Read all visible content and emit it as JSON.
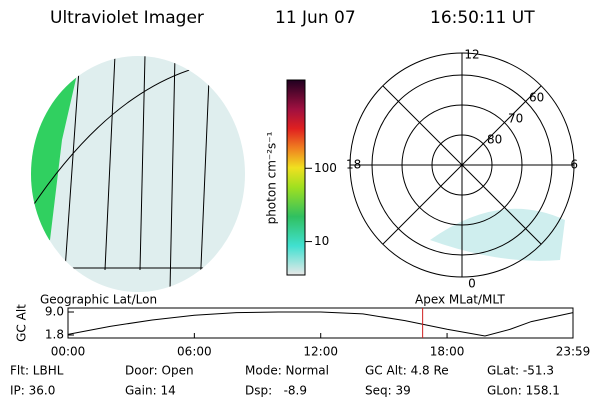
{
  "header": {
    "instrument": "Ultraviolet Imager",
    "date": "11 Jun 07",
    "time": "16:50:11 UT"
  },
  "colorbar": {
    "label": "photon cm⁻²s⁻¹",
    "scale": "log",
    "lim": [
      3.5,
      1600
    ],
    "ticks": [
      10,
      100
    ]
  },
  "polar": {
    "mlt_labels": [
      "12",
      "18",
      "6",
      "0"
    ],
    "lat_labels": [
      80,
      70,
      60
    ]
  },
  "captions": {
    "left": "Geographic Lat/Lon",
    "right": "Apex MLat/MLT"
  },
  "altitude": {
    "ylabel": "GC Alt",
    "ylim": [
      1.8,
      9.0
    ],
    "yticks": [
      {
        "value": 9.0,
        "label": "9.0"
      },
      {
        "value": 1.8,
        "label": "1.8"
      }
    ],
    "xlim": [
      0,
      23.98
    ],
    "xticks": [
      {
        "value": 0,
        "label": "00:00"
      },
      {
        "value": 6,
        "label": "06:00"
      },
      {
        "value": 12,
        "label": "12:00"
      },
      {
        "value": 18,
        "label": "18:00"
      },
      {
        "value": 23.98,
        "label": "23:59"
      }
    ],
    "x": [
      0,
      2,
      4,
      6,
      8,
      10,
      12,
      14,
      16,
      18,
      19.8,
      21,
      22,
      23.98
    ],
    "y": [
      2.0,
      4.5,
      6.5,
      8.0,
      8.8,
      9.0,
      9.0,
      8.4,
      6.3,
      3.6,
      1.5,
      3.6,
      6.0,
      8.8
    ],
    "marker": 16.84,
    "marker_color": "#d02020"
  },
  "footer": [
    [
      "Flt: LBHL",
      "Door: Open",
      "Mode: Normal",
      "GC Alt: 4.8 Re",
      "GLat: -51.3"
    ],
    [
      "IP: 36.0",
      "Gain: 14",
      "Dsp:   -8.9",
      "Seq: 39",
      "GLon: 158.1"
    ]
  ]
}
